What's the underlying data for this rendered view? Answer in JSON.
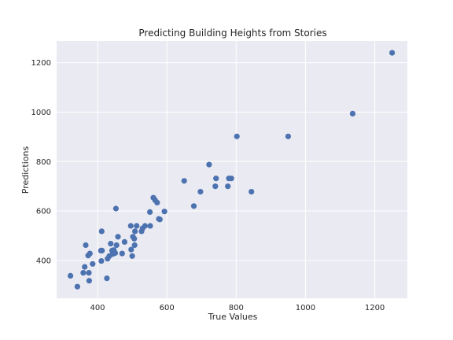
{
  "chart_data": {
    "type": "scatter",
    "title": "Predicting Building Heights from Stories",
    "xlabel": "True Values",
    "ylabel": "Predictions",
    "xlim": [
      282,
      1294
    ],
    "ylim": [
      247,
      1288
    ],
    "xticks": [
      400,
      600,
      800,
      1000,
      1200
    ],
    "yticks": [
      400,
      600,
      800,
      1000,
      1200
    ],
    "grid": true,
    "colors": {
      "background": "#eaeaf2",
      "grid": "#ffffff",
      "marker": "#4c72b0"
    },
    "points": [
      [
        322,
        338
      ],
      [
        342,
        294
      ],
      [
        359,
        350
      ],
      [
        363,
        374
      ],
      [
        366,
        462
      ],
      [
        373,
        420
      ],
      [
        376,
        318
      ],
      [
        375,
        350
      ],
      [
        378,
        428
      ],
      [
        386,
        386
      ],
      [
        410,
        440
      ],
      [
        413,
        440
      ],
      [
        412,
        518
      ],
      [
        411,
        398
      ],
      [
        427,
        328
      ],
      [
        429,
        407
      ],
      [
        434,
        418
      ],
      [
        438,
        468
      ],
      [
        442,
        440
      ],
      [
        444,
        426
      ],
      [
        447,
        442
      ],
      [
        451,
        430
      ],
      [
        453,
        610
      ],
      [
        455,
        462
      ],
      [
        459,
        496
      ],
      [
        471,
        428
      ],
      [
        478,
        475
      ],
      [
        496,
        540
      ],
      [
        497,
        444
      ],
      [
        500,
        418
      ],
      [
        502,
        496
      ],
      [
        506,
        488
      ],
      [
        508,
        518
      ],
      [
        507,
        462
      ],
      [
        513,
        540
      ],
      [
        527,
        518
      ],
      [
        530,
        530
      ],
      [
        537,
        540
      ],
      [
        552,
        540
      ],
      [
        551,
        596
      ],
      [
        561,
        654
      ],
      [
        566,
        644
      ],
      [
        572,
        634
      ],
      [
        577,
        568
      ],
      [
        580,
        566
      ],
      [
        593,
        598
      ],
      [
        650,
        722
      ],
      [
        678,
        620
      ],
      [
        697,
        678
      ],
      [
        722,
        788
      ],
      [
        740,
        700
      ],
      [
        742,
        732
      ],
      [
        776,
        700
      ],
      [
        779,
        732
      ],
      [
        786,
        732
      ],
      [
        802,
        902
      ],
      [
        844,
        678
      ],
      [
        950,
        902
      ],
      [
        1136,
        994
      ],
      [
        1250,
        1240
      ]
    ]
  }
}
